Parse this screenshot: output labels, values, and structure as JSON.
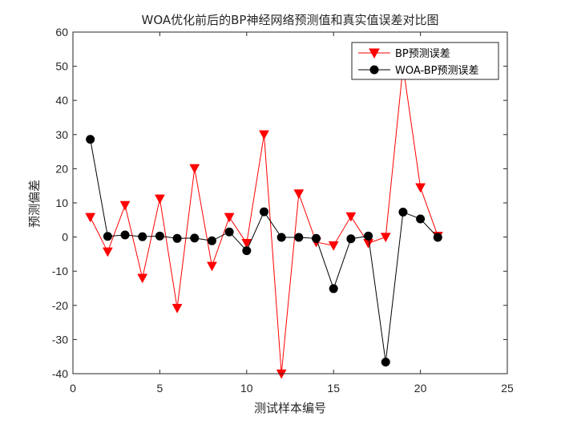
{
  "chart_data": {
    "type": "line",
    "title": "WOA优化前后的BP神经网络预测值和真实值误差对比图",
    "xlabel": "测试样本编号",
    "ylabel": "预测偏差",
    "xlim": [
      0,
      25
    ],
    "ylim": [
      -40,
      60
    ],
    "xticks": [
      0,
      5,
      10,
      15,
      20,
      25
    ],
    "yticks": [
      -40,
      -30,
      -20,
      -10,
      0,
      10,
      20,
      30,
      40,
      50,
      60
    ],
    "grid": false,
    "legend_position": "top-right",
    "x": [
      1,
      2,
      3,
      4,
      5,
      6,
      7,
      8,
      9,
      10,
      11,
      12,
      13,
      14,
      15,
      16,
      17,
      18,
      19,
      20,
      21
    ],
    "series": [
      {
        "name": "BP预测误差",
        "color": "#ff0000",
        "marker": "triangle-down",
        "values": [
          5.8,
          -4.3,
          9.3,
          -12.0,
          11.2,
          -20.8,
          20.1,
          -8.5,
          5.8,
          -1.8,
          30.0,
          -40.0,
          12.7,
          -1.5,
          -2.5,
          6.0,
          -1.8,
          0.0,
          50.0,
          14.5,
          0.3
        ]
      },
      {
        "name": "WOA-BP预测误差",
        "color": "#000000",
        "marker": "circle",
        "values": [
          28.6,
          0.2,
          0.6,
          0.1,
          0.3,
          -0.4,
          -0.3,
          -1.1,
          1.5,
          -4.0,
          7.4,
          -0.1,
          -0.1,
          -0.4,
          -15.1,
          -0.5,
          0.3,
          -36.6,
          7.3,
          5.3,
          -0.1
        ]
      }
    ]
  }
}
